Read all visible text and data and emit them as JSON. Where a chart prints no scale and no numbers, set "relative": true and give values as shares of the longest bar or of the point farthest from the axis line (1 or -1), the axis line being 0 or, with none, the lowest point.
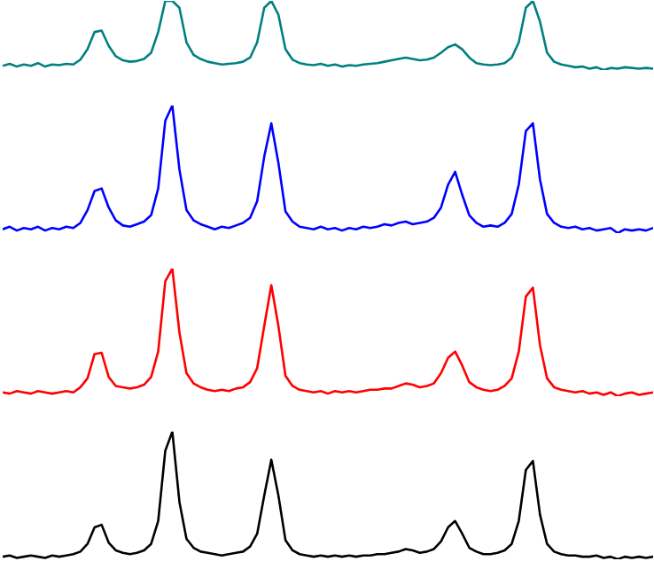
{
  "chart_data": [
    {
      "type": "line",
      "relative": true,
      "categories": [
        null,
        null,
        null,
        null,
        null,
        null,
        null,
        null,
        null,
        null,
        null,
        null,
        null,
        null,
        null,
        null,
        null,
        null,
        null,
        null,
        null,
        null,
        null,
        null,
        null,
        null,
        null,
        null,
        null,
        null,
        null,
        null,
        null,
        null,
        null,
        null,
        null,
        null,
        null,
        null,
        null,
        null,
        null,
        null,
        null,
        null,
        null,
        null,
        null,
        null,
        null,
        null,
        null,
        null,
        null,
        null,
        null,
        null,
        null,
        null,
        null,
        null,
        null,
        null,
        null,
        null,
        null,
        null,
        null,
        null,
        null,
        null,
        null,
        null,
        null,
        null,
        null,
        null,
        null,
        null,
        null,
        null,
        null,
        null,
        null,
        null,
        null,
        null,
        null,
        null,
        null,
        null,
        null
      ],
      "series": [
        {
          "color": "#008080",
          "values": [
            0.06,
            0.09,
            0.05,
            0.08,
            0.06,
            0.1,
            0.05,
            0.08,
            0.07,
            0.09,
            0.08,
            0.15,
            0.3,
            0.55,
            0.57,
            0.35,
            0.2,
            0.14,
            0.12,
            0.13,
            0.16,
            0.25,
            0.55,
            1.0,
            1.0,
            0.9,
            0.4,
            0.22,
            0.16,
            0.12,
            0.1,
            0.08,
            0.09,
            0.1,
            0.12,
            0.18,
            0.4,
            0.9,
            1.0,
            0.8,
            0.3,
            0.15,
            0.1,
            0.08,
            0.07,
            0.09,
            0.06,
            0.08,
            0.05,
            0.07,
            0.06,
            0.08,
            0.09,
            0.1,
            0.12,
            0.14,
            0.16,
            0.18,
            0.16,
            0.14,
            0.15,
            0.18,
            0.25,
            0.33,
            0.37,
            0.3,
            0.18,
            0.1,
            0.08,
            0.07,
            0.08,
            0.1,
            0.18,
            0.4,
            0.9,
            1.0,
            0.7,
            0.25,
            0.12,
            0.08,
            0.06,
            0.04,
            0.05,
            0.02,
            0.04,
            0.0,
            0.03,
            0.02,
            0.04,
            0.03,
            0.02,
            0.03,
            0.02
          ]
        }
      ]
    },
    {
      "type": "line",
      "relative": true,
      "categories": [
        null,
        null,
        null,
        null,
        null,
        null,
        null,
        null,
        null,
        null,
        null,
        null,
        null,
        null,
        null,
        null,
        null,
        null,
        null,
        null,
        null,
        null,
        null,
        null,
        null,
        null,
        null,
        null,
        null,
        null,
        null,
        null,
        null,
        null,
        null,
        null,
        null,
        null,
        null,
        null,
        null,
        null,
        null,
        null,
        null,
        null,
        null,
        null,
        null,
        null,
        null,
        null,
        null,
        null,
        null,
        null,
        null,
        null,
        null,
        null,
        null,
        null,
        null,
        null,
        null,
        null,
        null,
        null,
        null,
        null,
        null,
        null,
        null,
        null,
        null,
        null,
        null,
        null,
        null,
        null,
        null,
        null,
        null,
        null,
        null,
        null,
        null,
        null,
        null,
        null,
        null,
        null,
        null
      ],
      "series": [
        {
          "color": "#0000ff",
          "values": [
            0.03,
            0.05,
            0.02,
            0.04,
            0.03,
            0.05,
            0.02,
            0.04,
            0.03,
            0.05,
            0.04,
            0.08,
            0.18,
            0.33,
            0.35,
            0.2,
            0.1,
            0.06,
            0.05,
            0.07,
            0.09,
            0.14,
            0.35,
            0.88,
            1.0,
            0.5,
            0.18,
            0.1,
            0.07,
            0.05,
            0.03,
            0.05,
            0.04,
            0.06,
            0.08,
            0.12,
            0.25,
            0.6,
            0.86,
            0.55,
            0.17,
            0.09,
            0.05,
            0.04,
            0.03,
            0.05,
            0.03,
            0.04,
            0.02,
            0.04,
            0.03,
            0.05,
            0.04,
            0.05,
            0.07,
            0.06,
            0.08,
            0.09,
            0.07,
            0.08,
            0.09,
            0.12,
            0.2,
            0.38,
            0.48,
            0.3,
            0.14,
            0.08,
            0.05,
            0.06,
            0.05,
            0.08,
            0.15,
            0.38,
            0.8,
            0.86,
            0.42,
            0.15,
            0.08,
            0.05,
            0.04,
            0.05,
            0.03,
            0.04,
            0.02,
            0.03,
            0.04,
            0.0,
            0.03,
            0.02,
            0.03,
            0.02,
            0.04
          ]
        }
      ]
    },
    {
      "type": "line",
      "relative": true,
      "categories": [
        null,
        null,
        null,
        null,
        null,
        null,
        null,
        null,
        null,
        null,
        null,
        null,
        null,
        null,
        null,
        null,
        null,
        null,
        null,
        null,
        null,
        null,
        null,
        null,
        null,
        null,
        null,
        null,
        null,
        null,
        null,
        null,
        null,
        null,
        null,
        null,
        null,
        null,
        null,
        null,
        null,
        null,
        null,
        null,
        null,
        null,
        null,
        null,
        null,
        null,
        null,
        null,
        null,
        null,
        null,
        null,
        null,
        null,
        null,
        null,
        null,
        null,
        null,
        null,
        null,
        null,
        null,
        null,
        null,
        null,
        null,
        null,
        null,
        null,
        null,
        null,
        null,
        null,
        null,
        null,
        null,
        null,
        null,
        null,
        null,
        null,
        null,
        null,
        null,
        null,
        null,
        null,
        null
      ],
      "series": [
        {
          "color": "#ff0000",
          "values": [
            0.03,
            0.02,
            0.04,
            0.03,
            0.02,
            0.04,
            0.03,
            0.02,
            0.03,
            0.04,
            0.03,
            0.07,
            0.14,
            0.33,
            0.34,
            0.15,
            0.08,
            0.07,
            0.06,
            0.07,
            0.09,
            0.15,
            0.35,
            0.9,
            1.0,
            0.5,
            0.18,
            0.1,
            0.07,
            0.05,
            0.04,
            0.05,
            0.04,
            0.06,
            0.07,
            0.11,
            0.22,
            0.55,
            0.87,
            0.55,
            0.16,
            0.08,
            0.05,
            0.04,
            0.03,
            0.04,
            0.02,
            0.04,
            0.03,
            0.04,
            0.03,
            0.04,
            0.05,
            0.05,
            0.06,
            0.06,
            0.08,
            0.1,
            0.09,
            0.07,
            0.08,
            0.1,
            0.18,
            0.3,
            0.35,
            0.24,
            0.11,
            0.07,
            0.05,
            0.04,
            0.05,
            0.08,
            0.14,
            0.35,
            0.78,
            0.85,
            0.4,
            0.14,
            0.07,
            0.05,
            0.04,
            0.03,
            0.04,
            0.02,
            0.03,
            0.01,
            0.03,
            0.0,
            0.02,
            0.03,
            0.01,
            0.02,
            0.03
          ]
        }
      ]
    },
    {
      "type": "line",
      "relative": true,
      "categories": [
        null,
        null,
        null,
        null,
        null,
        null,
        null,
        null,
        null,
        null,
        null,
        null,
        null,
        null,
        null,
        null,
        null,
        null,
        null,
        null,
        null,
        null,
        null,
        null,
        null,
        null,
        null,
        null,
        null,
        null,
        null,
        null,
        null,
        null,
        null,
        null,
        null,
        null,
        null,
        null,
        null,
        null,
        null,
        null,
        null,
        null,
        null,
        null,
        null,
        null,
        null,
        null,
        null,
        null,
        null,
        null,
        null,
        null,
        null,
        null,
        null,
        null,
        null,
        null,
        null,
        null,
        null,
        null,
        null,
        null,
        null,
        null,
        null,
        null,
        null,
        null,
        null,
        null,
        null,
        null,
        null,
        null,
        null,
        null,
        null,
        null,
        null,
        null,
        null,
        null,
        null,
        null,
        null
      ],
      "series": [
        {
          "color": "#000000",
          "values": [
            0.02,
            0.03,
            0.01,
            0.02,
            0.03,
            0.02,
            0.01,
            0.03,
            0.02,
            0.03,
            0.04,
            0.06,
            0.12,
            0.25,
            0.27,
            0.13,
            0.07,
            0.05,
            0.04,
            0.05,
            0.07,
            0.12,
            0.3,
            0.85,
            1.0,
            0.45,
            0.16,
            0.09,
            0.06,
            0.05,
            0.04,
            0.03,
            0.04,
            0.05,
            0.06,
            0.1,
            0.2,
            0.5,
            0.78,
            0.5,
            0.15,
            0.07,
            0.04,
            0.03,
            0.02,
            0.03,
            0.02,
            0.03,
            0.02,
            0.03,
            0.02,
            0.03,
            0.03,
            0.04,
            0.04,
            0.05,
            0.06,
            0.08,
            0.07,
            0.05,
            0.06,
            0.08,
            0.14,
            0.25,
            0.3,
            0.2,
            0.09,
            0.06,
            0.04,
            0.04,
            0.05,
            0.07,
            0.12,
            0.3,
            0.7,
            0.77,
            0.35,
            0.12,
            0.06,
            0.04,
            0.03,
            0.03,
            0.02,
            0.02,
            0.03,
            0.01,
            0.02,
            0.0,
            0.02,
            0.01,
            0.02,
            0.01,
            0.02
          ]
        }
      ]
    }
  ]
}
